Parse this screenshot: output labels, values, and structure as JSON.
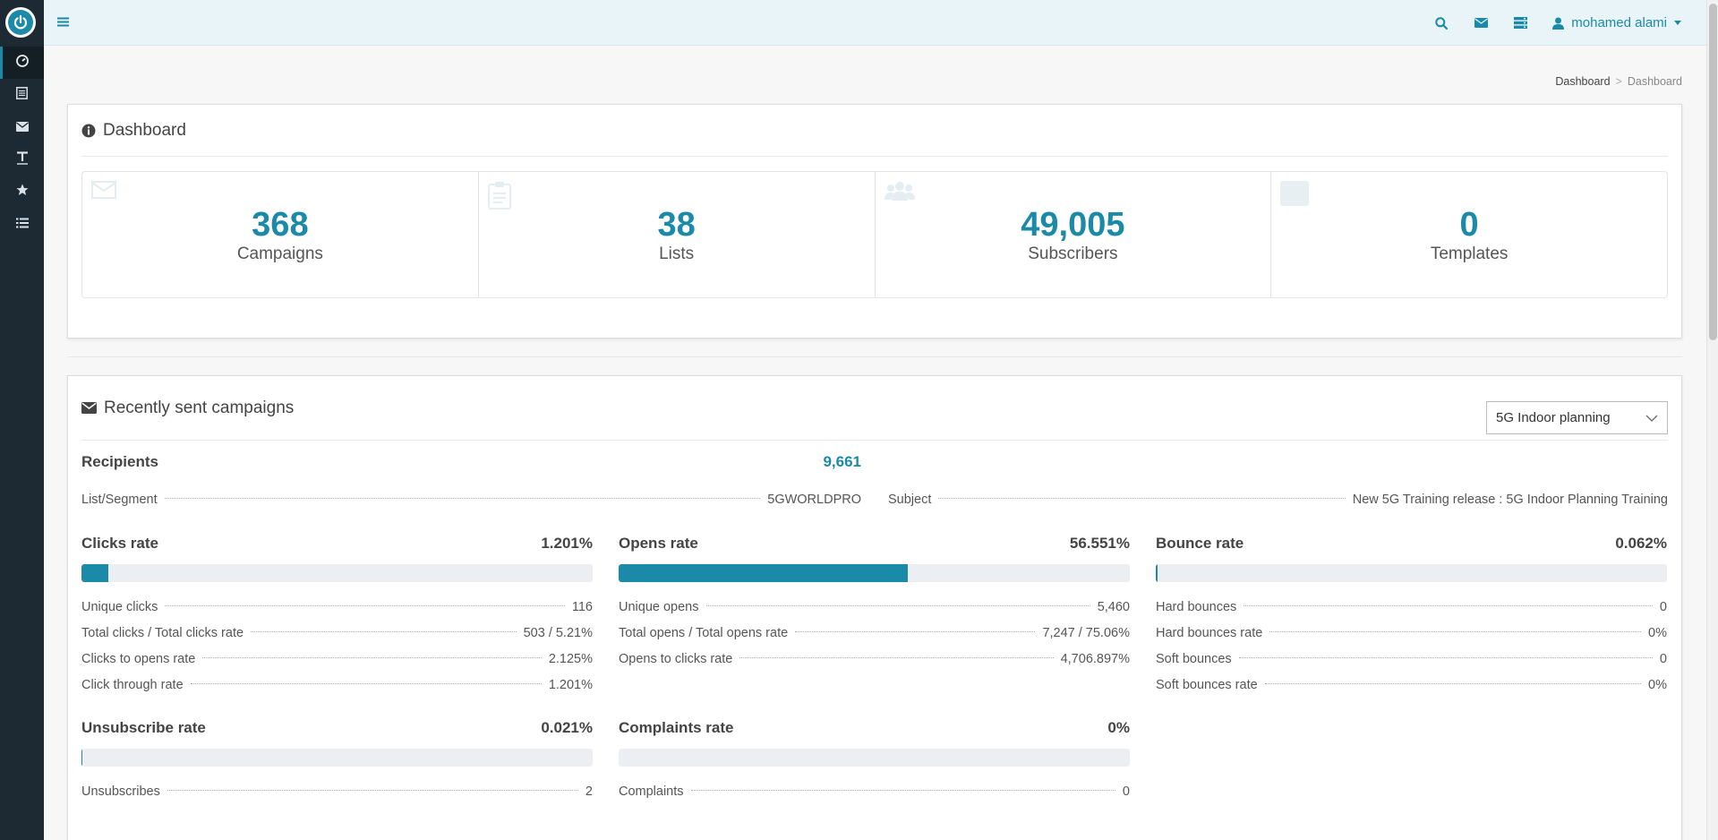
{
  "topbar": {
    "user_name": "mohamed alami"
  },
  "sidebar": {
    "items": [
      {
        "icon": "dashboard-icon",
        "active": true
      },
      {
        "icon": "list-icon",
        "active": false
      },
      {
        "icon": "envelope-icon",
        "active": false
      },
      {
        "icon": "text-icon",
        "active": false
      },
      {
        "icon": "star-icon",
        "active": false
      },
      {
        "icon": "bullet-list-icon",
        "active": false
      }
    ]
  },
  "breadcrumb": {
    "link": "Dashboard",
    "separator": ">",
    "current": "Dashboard"
  },
  "dashboard": {
    "title": "Dashboard",
    "stats": [
      {
        "value": "368",
        "label": "Campaigns"
      },
      {
        "value": "38",
        "label": "Lists"
      },
      {
        "value": "49,005",
        "label": "Subscribers"
      },
      {
        "value": "0",
        "label": "Templates"
      }
    ]
  },
  "campaigns": {
    "title": "Recently sent campaigns",
    "selected_campaign": "5G Indoor planning",
    "recipients_label": "Recipients",
    "recipients_value": "9,661",
    "list_segment_label": "List/Segment",
    "list_segment_value": "5GWORLDPRO",
    "subject_label": "Subject",
    "subject_value": "New 5G Training release : 5G Indoor Planning Training",
    "metrics": [
      {
        "title": "Clicks rate",
        "value": "1.201%",
        "fraction": 0.052,
        "rows": [
          {
            "label": "Unique clicks",
            "value": "116"
          },
          {
            "label": "Total clicks / Total clicks rate",
            "value": "503 / 5.21%"
          },
          {
            "label": "Clicks to opens rate",
            "value": "2.125%"
          },
          {
            "label": "Click through rate",
            "value": "1.201%"
          }
        ]
      },
      {
        "title": "Opens rate",
        "value": "56.551%",
        "fraction": 0.5655,
        "rows": [
          {
            "label": "Unique opens",
            "value": "5,460"
          },
          {
            "label": "Total opens / Total opens rate",
            "value": "7,247 / 75.06%"
          },
          {
            "label": "Opens to clicks rate",
            "value": "4,706.897%"
          }
        ]
      },
      {
        "title": "Bounce rate",
        "value": "0.062%",
        "fraction": 0.003,
        "rows": [
          {
            "label": "Hard bounces",
            "value": "0"
          },
          {
            "label": "Hard bounces rate",
            "value": "0%"
          },
          {
            "label": "Soft bounces",
            "value": "0"
          },
          {
            "label": "Soft bounces rate",
            "value": "0%"
          }
        ]
      },
      {
        "title": "Unsubscribe rate",
        "value": "0.021%",
        "fraction": 0.002,
        "rows": [
          {
            "label": "Unsubscribes",
            "value": "2"
          }
        ]
      },
      {
        "title": "Complaints rate",
        "value": "0%",
        "fraction": 0,
        "rows": [
          {
            "label": "Complaints",
            "value": "0"
          }
        ]
      }
    ]
  },
  "colors": {
    "accent": "#1a8aa8",
    "sidebar": "#1d2a33",
    "topbar": "#e8f4f7"
  }
}
